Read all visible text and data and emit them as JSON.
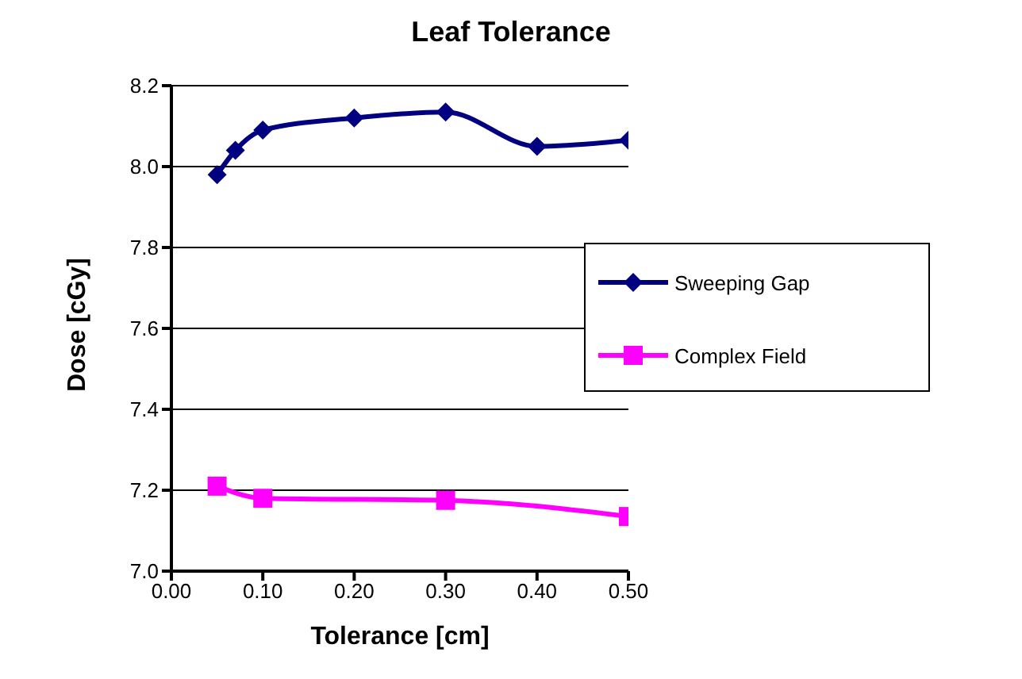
{
  "chart_data": {
    "type": "line",
    "title": "Leaf Tolerance",
    "xlabel": "Tolerance [cm]",
    "ylabel": "Dose [cGy]",
    "xlim": [
      0,
      0.5
    ],
    "xticks": [
      {
        "value": 0,
        "label": "0.00"
      },
      {
        "value": 0.1,
        "label": "0.10"
      },
      {
        "value": 0.2,
        "label": "0.20"
      },
      {
        "value": 0.3,
        "label": "0.30"
      },
      {
        "value": 0.4,
        "label": "0.40"
      },
      {
        "value": 0.5,
        "label": "0.50"
      }
    ],
    "ylim": [
      7.0,
      8.2
    ],
    "yticks": [
      {
        "value": 7.0,
        "label": "7.0"
      },
      {
        "value": 7.2,
        "label": "7.2"
      },
      {
        "value": 7.4,
        "label": "7.4"
      },
      {
        "value": 7.6,
        "label": "7.6"
      },
      {
        "value": 7.8,
        "label": "7.8"
      },
      {
        "value": 8.0,
        "label": "8.0"
      },
      {
        "value": 8.2,
        "label": "8.2"
      }
    ],
    "grid": "y",
    "legend": "right",
    "series": [
      {
        "name": "Sweeping Gap",
        "color": "#000080",
        "marker": "diamond",
        "x": [
          0.05,
          0.07,
          0.1,
          0.2,
          0.3,
          0.4,
          0.5
        ],
        "values": [
          7.98,
          8.04,
          8.09,
          8.12,
          8.135,
          8.05,
          8.065
        ]
      },
      {
        "name": "Complex Field",
        "color": "#ff00ff",
        "marker": "square",
        "x": [
          0.05,
          0.1,
          0.3,
          0.5
        ],
        "values": [
          7.21,
          7.18,
          7.175,
          7.135
        ]
      }
    ]
  }
}
